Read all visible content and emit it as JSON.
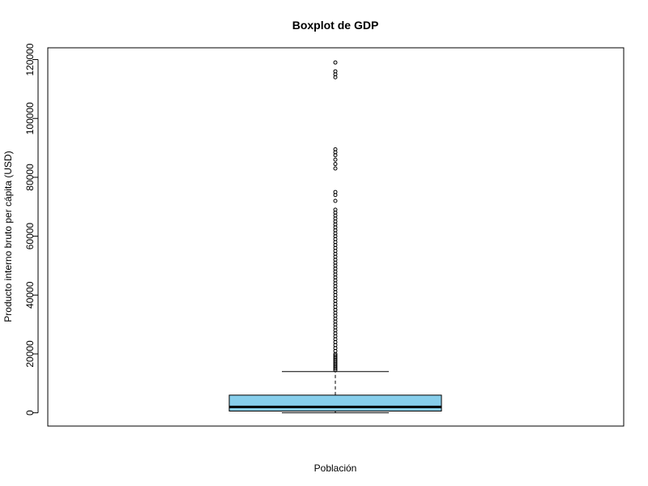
{
  "chart_data": {
    "type": "boxplot",
    "title": "Boxplot de GDP",
    "xlabel": "Población",
    "ylabel": "Producto interno bruto per cápita (USD)",
    "ylim": [
      -4500,
      124000
    ],
    "yticks": [
      0,
      20000,
      40000,
      60000,
      80000,
      100000,
      120000
    ],
    "box": {
      "min": 0,
      "q1": 600,
      "median": 2000,
      "q3": 6000,
      "whisker_low": 0,
      "whisker_high": 14000,
      "fill_color": "#87CEEB"
    },
    "outliers": [
      14500,
      15000,
      15500,
      16000,
      16500,
      17000,
      17500,
      18000,
      18500,
      19000,
      19500,
      20000,
      21000,
      22000,
      23000,
      24000,
      25000,
      26000,
      27000,
      28000,
      29000,
      30000,
      31000,
      32000,
      33000,
      34000,
      35000,
      36000,
      37000,
      38000,
      39000,
      40000,
      41000,
      42000,
      43000,
      44000,
      45000,
      46000,
      47000,
      48000,
      49000,
      50000,
      51000,
      52000,
      53000,
      54000,
      55000,
      56000,
      57000,
      58000,
      59000,
      60000,
      61000,
      62000,
      63000,
      64000,
      65000,
      66000,
      67000,
      68000,
      69000,
      72000,
      74000,
      75000,
      83000,
      84500,
      86000,
      87500,
      88500,
      89500,
      114000,
      115000,
      116000,
      119000
    ],
    "grid": false,
    "legend": "none"
  }
}
